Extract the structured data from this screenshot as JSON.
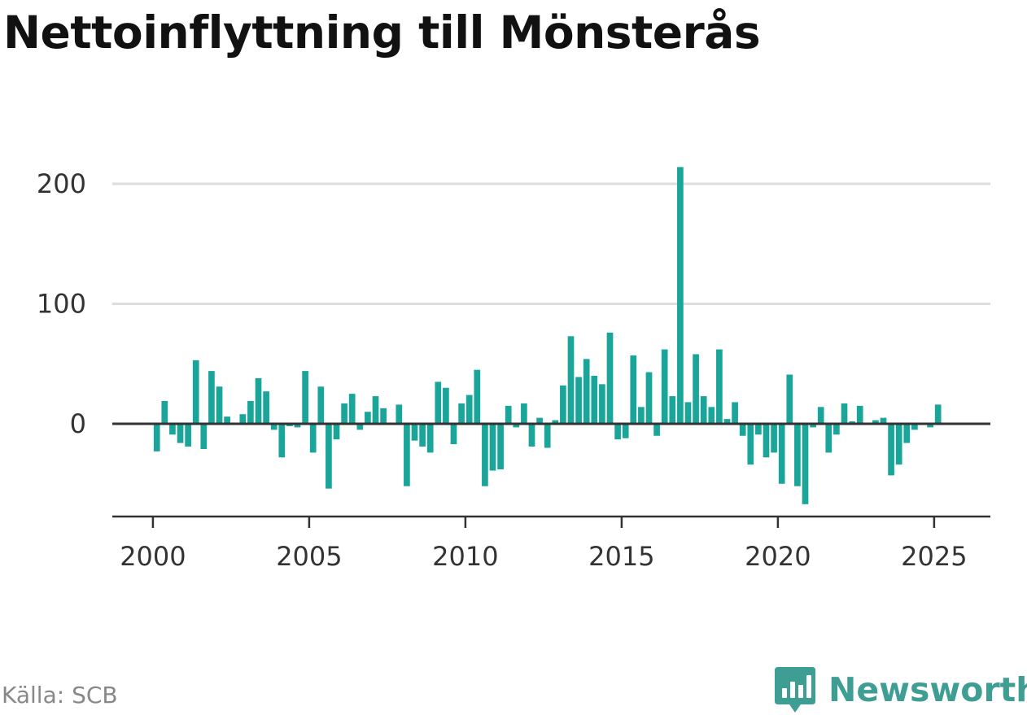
{
  "title": "Nettoinflyttning till Mönsterås",
  "source": "Källa: SCB",
  "brand": {
    "name": "Newsworthy"
  },
  "colors": {
    "bar": "#1aa59a",
    "axis": "#333333",
    "grid": "#dddddd",
    "brand": "#3f9e94"
  },
  "chart_data": {
    "type": "bar",
    "title": "Nettoinflyttning till Mönsterås",
    "xlabel": "",
    "ylabel": "",
    "x_domain": [
      1998.7,
      2026.8
    ],
    "ylim": [
      -75,
      215
    ],
    "yticks": [
      0,
      100,
      200
    ],
    "xticks": [
      2000,
      2005,
      2010,
      2015,
      2020,
      2025
    ],
    "grid": true,
    "x": [
      2000.125,
      2000.375,
      2000.625,
      2000.875,
      2001.125,
      2001.375,
      2001.625,
      2001.875,
      2002.125,
      2002.375,
      2002.625,
      2002.875,
      2003.125,
      2003.375,
      2003.625,
      2003.875,
      2004.125,
      2004.375,
      2004.625,
      2004.875,
      2005.125,
      2005.375,
      2005.625,
      2005.875,
      2006.125,
      2006.375,
      2006.625,
      2006.875,
      2007.125,
      2007.375,
      2007.625,
      2007.875,
      2008.125,
      2008.375,
      2008.625,
      2008.875,
      2009.125,
      2009.375,
      2009.625,
      2009.875,
      2010.125,
      2010.375,
      2010.625,
      2010.875,
      2011.125,
      2011.375,
      2011.625,
      2011.875,
      2012.125,
      2012.375,
      2012.625,
      2012.875,
      2013.125,
      2013.375,
      2013.625,
      2013.875,
      2014.125,
      2014.375,
      2014.625,
      2014.875,
      2015.125,
      2015.375,
      2015.625,
      2015.875,
      2016.125,
      2016.375,
      2016.625,
      2016.875,
      2017.125,
      2017.375,
      2017.625,
      2017.875,
      2018.125,
      2018.375,
      2018.625,
      2018.875,
      2019.125,
      2019.375,
      2019.625,
      2019.875,
      2020.125,
      2020.375,
      2020.625,
      2020.875,
      2021.125,
      2021.375,
      2021.625,
      2021.875,
      2022.125,
      2022.375,
      2022.625,
      2022.875,
      2023.125,
      2023.375,
      2023.625,
      2023.875,
      2024.125,
      2024.375,
      2024.625,
      2024.875,
      2025.125
    ],
    "values": [
      -23,
      19,
      -9,
      -16,
      -19,
      53,
      -21,
      44,
      31,
      6,
      0,
      8,
      19,
      38,
      27,
      -5,
      -28,
      -2,
      -3,
      44,
      -24,
      31,
      -54,
      -13,
      17,
      25,
      -5,
      10,
      23,
      13,
      0,
      16,
      -52,
      -14,
      -19,
      -24,
      35,
      30,
      -17,
      17,
      24,
      45,
      -52,
      -39,
      -38,
      15,
      -3,
      17,
      -19,
      5,
      -20,
      3,
      32,
      73,
      39,
      54,
      40,
      33,
      76,
      -13,
      -12,
      57,
      14,
      43,
      -10,
      62,
      23,
      214,
      18,
      58,
      23,
      14,
      62,
      4,
      18,
      -10,
      -34,
      -9,
      -28,
      -24,
      -50,
      41,
      -52,
      -67,
      -3,
      14,
      -24,
      -9,
      17,
      2,
      15,
      0,
      3,
      5,
      -43,
      -34,
      -16,
      -5,
      1,
      -3,
      16
    ]
  }
}
